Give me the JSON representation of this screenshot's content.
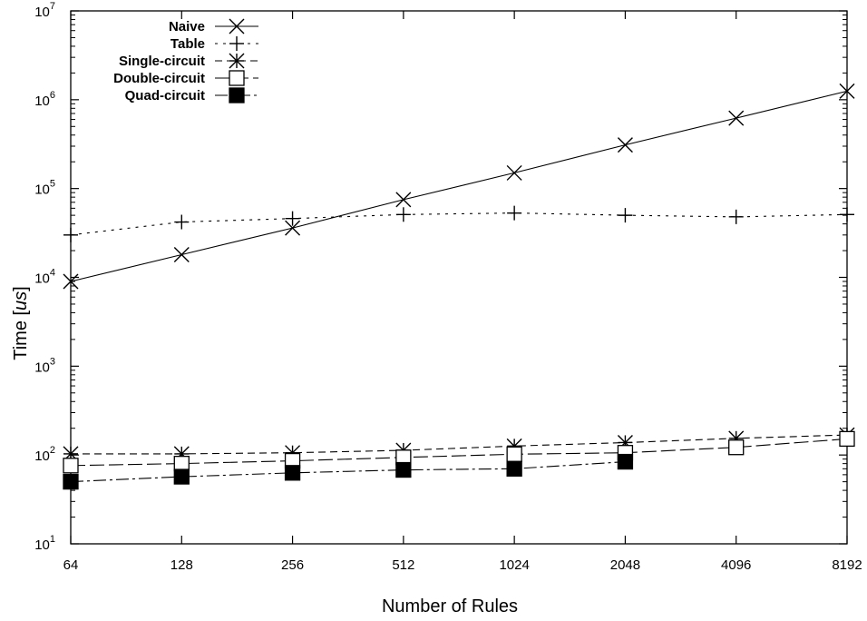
{
  "chart_data": {
    "type": "line",
    "title": "",
    "xlabel": "Number of Rules",
    "ylabel_prefix": "Time [",
    "ylabel_unit": "us",
    "ylabel_suffix": "]",
    "y_scale": "log",
    "x_scale": "log2",
    "ylim": [
      10,
      10000000
    ],
    "x": [
      64,
      128,
      256,
      512,
      1024,
      2048,
      4096,
      8192
    ],
    "x_tick_labels": [
      "64",
      "128",
      "256",
      "512",
      "1024",
      "2048",
      "4096",
      "8192"
    ],
    "y_ticks": [
      10,
      100,
      1000,
      10000,
      100000,
      1000000,
      10000000
    ],
    "y_tick_base": "10",
    "y_tick_exponents": [
      "1",
      "2",
      "3",
      "4",
      "5",
      "6",
      "7"
    ],
    "grid": false,
    "legend_position": "top-left",
    "series": [
      {
        "name": "Naive",
        "marker": "x",
        "dash": "",
        "x": [
          64,
          128,
          256,
          512,
          1024,
          2048,
          4096,
          8192
        ],
        "values": [
          9000,
          18000,
          36000,
          75000,
          150000,
          310000,
          620000,
          1250000
        ]
      },
      {
        "name": "Table",
        "marker": "plus",
        "dash": "3,6",
        "x": [
          64,
          128,
          256,
          512,
          1024,
          2048,
          4096,
          8192
        ],
        "values": [
          30000,
          42000,
          46000,
          51000,
          53000,
          50000,
          48000,
          51000
        ]
      },
      {
        "name": "Single-circuit",
        "marker": "star",
        "dash": "8,5",
        "x": [
          64,
          128,
          256,
          512,
          1024,
          2048,
          4096,
          8192
        ],
        "values": [
          103,
          103,
          106,
          113,
          126,
          138,
          154,
          168
        ]
      },
      {
        "name": "Double-circuit",
        "marker": "square-open",
        "dash": "16,5",
        "x": [
          64,
          128,
          256,
          512,
          1024,
          2048,
          4096,
          8192
        ],
        "values": [
          76,
          80,
          86,
          94,
          102,
          106,
          122,
          152
        ]
      },
      {
        "name": "Quad-circuit",
        "marker": "square-filled",
        "dash": "14,4,3,4",
        "x": [
          64,
          128,
          256,
          512,
          1024,
          2048
        ],
        "values": [
          50,
          57,
          63,
          68,
          70,
          84
        ]
      }
    ]
  }
}
